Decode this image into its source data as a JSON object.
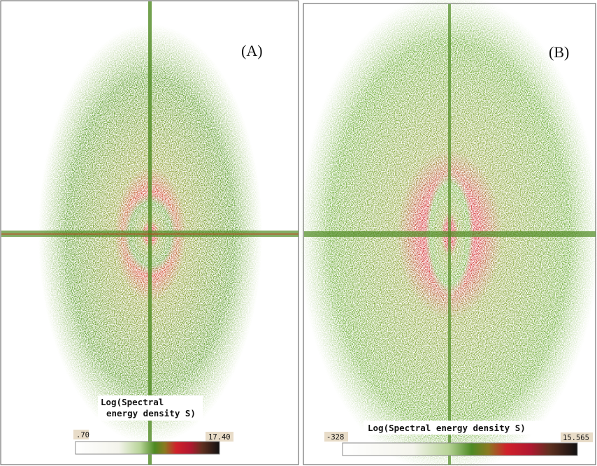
{
  "panels": [
    {
      "label": "(A)",
      "colorbar": {
        "title_lines": [
          "Log(Spectral",
          "energy density S)"
        ],
        "min": ".70",
        "max": "17.40"
      }
    },
    {
      "label": "(B)",
      "colorbar": {
        "title": "Log(Spectral energy density S)",
        "min": "-328",
        "max": "15.565"
      }
    }
  ]
}
